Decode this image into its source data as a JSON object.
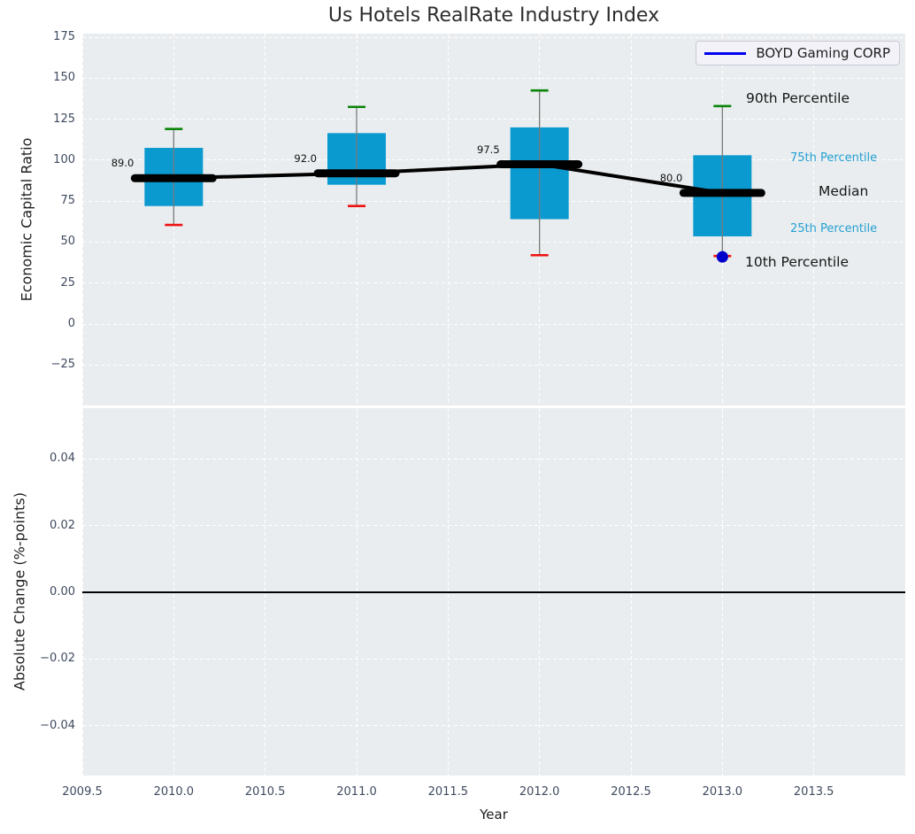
{
  "title": "Us Hotels RealRate Industry Index",
  "legend": {
    "label": "BOYD Gaming CORP"
  },
  "axes": {
    "xlabel": "Year",
    "panel1_ylabel": "Economic Capital Ratio",
    "panel2_ylabel": "Absolute Change (%-points)"
  },
  "colors": {
    "box_fill": "#0a9ad0",
    "whisker": "#7a7a7a",
    "cap_top": "#0a850a",
    "cap_bottom": "#ee1111",
    "median_line": "#000000",
    "trend_line": "#000000",
    "series_line": "#0000ee",
    "series_point": "#0000cc",
    "panel_background": "#e9edef",
    "grid": "#ffffff",
    "percentile_minor_label": "#24a0d2",
    "tick_label": "#3f4a5f"
  },
  "chart_data": {
    "type": "boxplot",
    "title": "Us Hotels RealRate Industry Index",
    "xlabel": "Year",
    "legend_position": "upper right",
    "grid": true,
    "xlim": [
      2009.5,
      2014.0
    ],
    "xticks": {
      "values": [
        2009.5,
        2010.0,
        2010.5,
        2011.0,
        2011.5,
        2012.0,
        2012.5,
        2013.0,
        2013.5
      ],
      "labels": [
        "2009.5",
        "2010.0",
        "2010.5",
        "2011.0",
        "2011.5",
        "2012.0",
        "2012.5",
        "2013.0",
        "2013.5"
      ]
    },
    "panel1": {
      "ylabel": "Economic Capital Ratio",
      "ylim": [
        -49.7,
        177.2
      ],
      "yticks": {
        "values": [
          175,
          150,
          125,
          100,
          75,
          50,
          25,
          0,
          -25
        ],
        "labels": [
          "175",
          "150",
          "125",
          "100",
          "75",
          "50",
          "25",
          "0",
          "−25"
        ]
      }
    },
    "panel2": {
      "ylabel": "Absolute Change (%-points)",
      "ylim": [
        -0.055,
        0.0552
      ],
      "yticks": {
        "values": [
          0.04,
          0.02,
          0,
          -0.02,
          -0.04
        ],
        "labels": [
          "0.04",
          "0.02",
          "0.00",
          "−0.02",
          "−0.04"
        ]
      },
      "zero_line": 0
    },
    "boxes": [
      {
        "year": 2010,
        "p10": 60.5,
        "q1": 72.0,
        "median": 89.0,
        "q3": 107.5,
        "p90": 119.0,
        "median_label": "89.0"
      },
      {
        "year": 2011,
        "p10": 72.0,
        "q1": 85.0,
        "median": 92.0,
        "q3": 116.5,
        "p90": 132.5,
        "median_label": "92.0"
      },
      {
        "year": 2012,
        "p10": 42.0,
        "q1": 64.0,
        "median": 97.5,
        "q3": 120.0,
        "p90": 142.5,
        "median_label": "97.5"
      },
      {
        "year": 2013,
        "p10": 41.5,
        "q1": 53.5,
        "median": 80.0,
        "q3": 103.0,
        "p90": 133.0,
        "median_label": "80.0"
      }
    ],
    "median_trend": {
      "x": [
        2010,
        2011,
        2012,
        2013
      ],
      "y": [
        89.0,
        92.0,
        97.5,
        80.0
      ]
    },
    "series": [
      {
        "name": "BOYD Gaming CORP",
        "points": [
          {
            "x": 2013,
            "y": 41
          }
        ]
      }
    ],
    "percentile_annotations": {
      "p90": "90th Percentile",
      "p75": "75th Percentile",
      "median": "Median",
      "p25": "25th Percentile",
      "p10": "10th Percentile"
    }
  }
}
